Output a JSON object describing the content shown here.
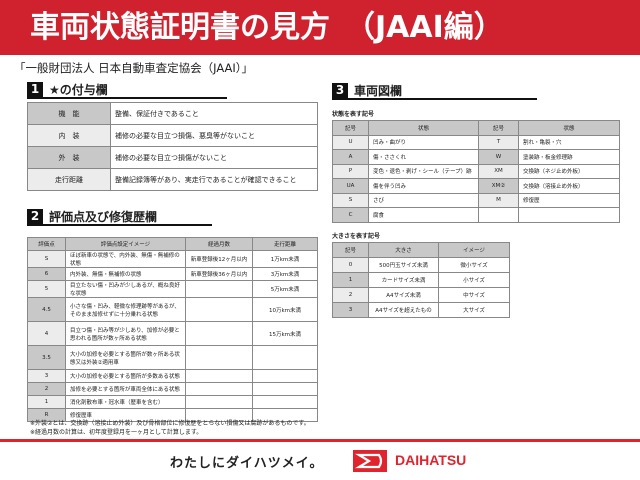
{
  "header": {
    "title": "車両状態証明書の見方　（JAAI編）"
  },
  "organization": "「一般財団法人 日本自動車査定協会（JAAI）」",
  "section1": {
    "num": "1",
    "title": "★の付与欄",
    "rows": [
      {
        "key": "機　能",
        "value": "整備、保証付きであること"
      },
      {
        "key": "内　装",
        "value": "補修の必要な目立つ損傷、悪臭等がないこと"
      },
      {
        "key": "外　装",
        "value": "補修の必要な目立つ損傷がないこと"
      },
      {
        "key": "走行距離",
        "value": "整備記録簿等があり、実走行であることが確認できること"
      }
    ]
  },
  "section2": {
    "num": "2",
    "title": "評価点及び修復歴欄",
    "headers": [
      "評価点",
      "評価点設定イメージ",
      "経過月数",
      "走行距離"
    ],
    "rows": [
      {
        "score": "S",
        "desc": "ほぼ新車の状態で、内外装、無傷・無補修の状態",
        "months": "新車登録後12ヶ月以内",
        "mileage": "1万km未満"
      },
      {
        "score": "6",
        "desc": "内外装、無傷・無補修の状態",
        "months": "新車登録後36ヶ月以内",
        "mileage": "3万km未満"
      },
      {
        "score": "5",
        "desc": "目立たない傷・凹みが少しあるが、概ね良好な状態",
        "months": "",
        "mileage": "5万km未満"
      },
      {
        "score": "4.5",
        "desc": "小さな傷・凹み、軽微な修理跡等があるが、そのまま加修せずに十分乗れる状態",
        "months": "",
        "mileage": "10万km未満"
      },
      {
        "score": "4",
        "desc": "目立つ傷・凹み等が少しあり、加修が必要と思われる箇所が数ヶ所ある状態",
        "months": "",
        "mileage": "15万km未満"
      },
      {
        "score": "3.5",
        "desc": "大小の加修を必要とする箇所が数ヶ所ある状態又は外装②適用車",
        "months": "",
        "mileage": ""
      },
      {
        "score": "3",
        "desc": "大小の加修を必要とする箇所が多数ある状態",
        "months": "",
        "mileage": ""
      },
      {
        "score": "2",
        "desc": "加修を必要とする箇所が車両全体にある状態",
        "months": "",
        "mileage": ""
      },
      {
        "score": "1",
        "desc": "消化剤散布車・冠水車（歴車を含む）",
        "months": "",
        "mileage": ""
      },
      {
        "score": "R",
        "desc": "修復歴車",
        "months": "",
        "mileage": ""
      }
    ]
  },
  "notes": [
    "※外装②とは、交換跡（溶接止め外装）及び骨格部位に修復歴をとらない損傷又は腐跡があるものです。",
    "※経過月数の計算は、初年度登録月を一ヶ月として計算します。"
  ],
  "section3": {
    "num": "3",
    "title": "車両図欄",
    "state_label": "状態を表す記号",
    "state_headers": [
      "記号",
      "状態",
      "記号",
      "状態"
    ],
    "state_rows": [
      [
        "U",
        "凹み・曲がり",
        "T",
        "割れ・亀裂・穴"
      ],
      [
        "A",
        "傷・ささくれ",
        "W",
        "塗装跡・板金修理跡"
      ],
      [
        "P",
        "変色・退色・剥げ・シール（テープ）跡",
        "XM",
        "交換跡（ネジ止め外板）"
      ],
      [
        "UA",
        "傷を伴う凹み",
        "XM②",
        "交換跡（溶接止め外板）"
      ],
      [
        "S",
        "さび",
        "M",
        "修復歴"
      ],
      [
        "C",
        "腐食",
        "",
        ""
      ]
    ],
    "size_label": "大きさを表す記号",
    "size_headers": [
      "記号",
      "大きさ",
      "イメージ"
    ],
    "size_rows": [
      [
        "0",
        "500円玉サイズ未満",
        "微小サイズ"
      ],
      [
        "1",
        "カードサイズ未満",
        "小サイズ"
      ],
      [
        "2",
        "A4サイズ未満",
        "中サイズ"
      ],
      [
        "3",
        "A4サイズを超えたもの",
        "大サイズ"
      ]
    ]
  },
  "footer": {
    "slogan": "わたしにダイハツメイ。",
    "brand": "DAIHATSU",
    "brand_color": "#e0242e"
  },
  "colors": {
    "band": "#d0222e"
  }
}
